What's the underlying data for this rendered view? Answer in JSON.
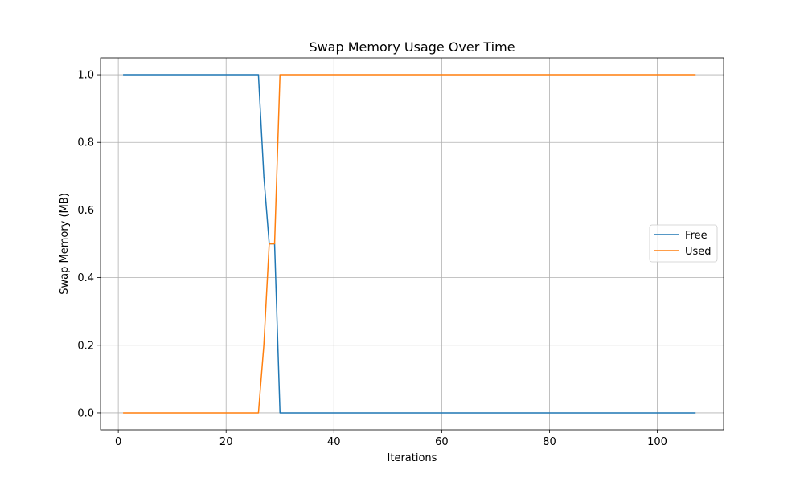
{
  "chart_data": {
    "type": "line",
    "title": "Swap Memory Usage Over Time",
    "xlabel": "Iterations",
    "ylabel": "Swap Memory (MB)",
    "xlim": [
      -3.3,
      112.3
    ],
    "ylim": [
      -0.05,
      1.05
    ],
    "xticks": [
      0,
      20,
      40,
      60,
      80,
      100
    ],
    "xtick_labels": [
      "0",
      "20",
      "40",
      "60",
      "80",
      "100"
    ],
    "yticks": [
      0.0,
      0.2,
      0.4,
      0.6,
      0.8,
      1.0
    ],
    "ytick_labels": [
      "0.0",
      "0.2",
      "0.4",
      "0.6",
      "0.8",
      "1.0"
    ],
    "grid": true,
    "legend_position": "center-right",
    "series": [
      {
        "name": "Free",
        "color": "#1f77b4",
        "x": [
          1,
          26,
          27,
          28,
          29,
          30,
          107
        ],
        "y": [
          1.0,
          1.0,
          0.7,
          0.5,
          0.5,
          0.0,
          0.0
        ]
      },
      {
        "name": "Used",
        "color": "#ff7f0e",
        "x": [
          1,
          26,
          27,
          28,
          29,
          30,
          107
        ],
        "y": [
          0.0,
          0.0,
          0.2,
          0.5,
          0.5,
          1.0,
          1.0
        ]
      }
    ]
  }
}
